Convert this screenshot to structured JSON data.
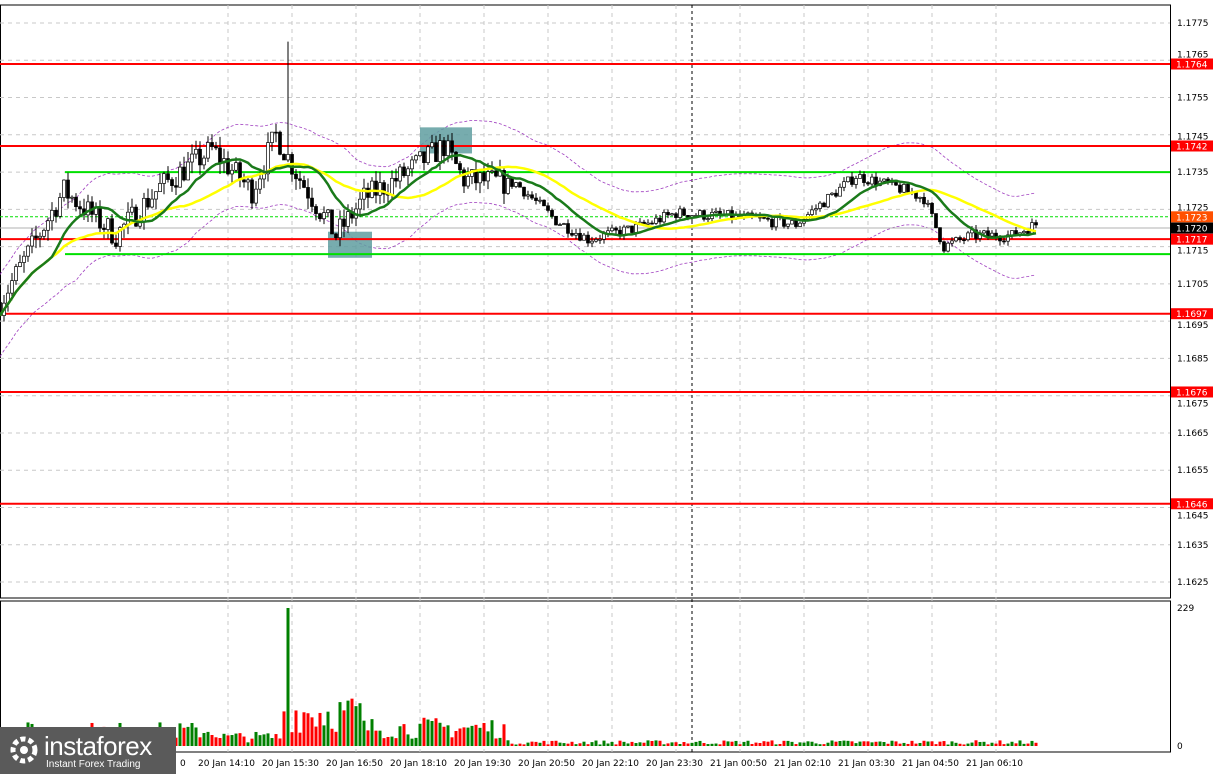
{
  "chart_data": {
    "type": "candlestick",
    "symbol_timeframe": "M5",
    "price_axis": {
      "ticks": [
        "1.1775",
        "1.1765",
        "1.1755",
        "1.1745",
        "1.1735",
        "1.1725",
        "1.1715",
        "1.1705",
        "1.1695",
        "1.1685",
        "1.1675",
        "1.1665",
        "1.1655",
        "1.1645",
        "1.1635",
        "1.1625"
      ],
      "range": [
        1.1621,
        1.1781
      ]
    },
    "time_axis": {
      "ticks": [
        "20 Jan 14:10",
        "20 Jan 15:30",
        "20 Jan 16:50",
        "20 Jan 18:10",
        "20 Jan 19:30",
        "20 Jan 20:50",
        "20 Jan 22:10",
        "20 Jan 23:30",
        "21 Jan 00:50",
        "21 Jan 02:10",
        "21 Jan 03:30",
        "21 Jan 04:50",
        "21 Jan 06:10"
      ],
      "partial_first_tick": "0"
    },
    "price_path": [
      [
        "20 Jan 09:25",
        1.17
      ],
      [
        "20 Jan 10:00",
        1.1713
      ],
      [
        "20 Jan 10:45",
        1.173
      ],
      [
        "20 Jan 11:50",
        1.1718
      ],
      [
        "20 Jan 12:45",
        1.1731
      ],
      [
        "20 Jan 13:50",
        1.1741
      ],
      [
        "20 Jan 14:40",
        1.173
      ],
      [
        "20 Jan 15:10",
        1.1745
      ],
      [
        "20 Jan 15:35",
        1.1735
      ],
      [
        "20 Jan 16:25",
        1.1718
      ],
      [
        "20 Jan 17:00",
        1.1728
      ],
      [
        "20 Jan 17:40",
        1.1733
      ],
      [
        "20 Jan 18:40",
        1.1742
      ],
      [
        "20 Jan 19:05",
        1.1733
      ],
      [
        "20 Jan 20:10",
        1.1732
      ],
      [
        "20 Jan 21:00",
        1.1722
      ],
      [
        "20 Jan 21:40",
        1.1717
      ],
      [
        "20 Jan 22:40",
        1.172
      ],
      [
        "20 Jan 23:30",
        1.1724
      ],
      [
        "21 Jan 00:45",
        1.1723
      ],
      [
        "21 Jan 02:00",
        1.1721
      ],
      [
        "21 Jan 03:15",
        1.1734
      ],
      [
        "21 Jan 04:05",
        1.1731
      ],
      [
        "21 Jan 04:40",
        1.1728
      ],
      [
        "21 Jan 05:05",
        1.1715
      ],
      [
        "21 Jan 05:40",
        1.1718
      ],
      [
        "21 Jan 06:30",
        1.1718
      ],
      [
        "21 Jan 07:00",
        1.1721
      ]
    ],
    "spike_high": {
      "time": "20 Jan 15:25",
      "price": 1.177
    },
    "current_price": "1.1720",
    "levels_red": [
      "1.1764",
      "1.1742",
      "1.1717",
      "1.1697",
      "1.1676",
      "1.1646"
    ],
    "levels_green": [
      1.1735,
      1.1713
    ],
    "level_dashed_green": "1.1723",
    "signal_boxes": [
      {
        "time_from": "20 Jan 18:10",
        "time_to": "20 Jan 19:15",
        "price_from": 1.174,
        "price_to": 1.1747
      },
      {
        "time_from": "20 Jan 16:15",
        "time_to": "20 Jan 17:10",
        "price_from": 1.1712,
        "price_to": 1.1719
      }
    ],
    "indicators": [
      "moving average fast (green)",
      "moving average slow (yellow)",
      "envelope bands (purple dashed)"
    ],
    "volume_axis": {
      "max_label": "229",
      "min_label": "0"
    },
    "volume_spike": {
      "time": "20 Jan 15:25",
      "value": 229
    },
    "session_separator": "20 Jan 23:50",
    "colors": {
      "level_red": "#ff0000",
      "level_green": "#00e000",
      "ma_fast": "#1a7a1a",
      "ma_slow": "#ffff00",
      "band": "#a040c0",
      "box": "#5f9ea0",
      "vol_up": "#008000",
      "vol_down": "#ff0000",
      "current_tag": "#000000",
      "dashed_tag": "#ff5000"
    }
  },
  "logo": {
    "brand": "instaforex",
    "tagline": "Instant Forex Trading"
  }
}
